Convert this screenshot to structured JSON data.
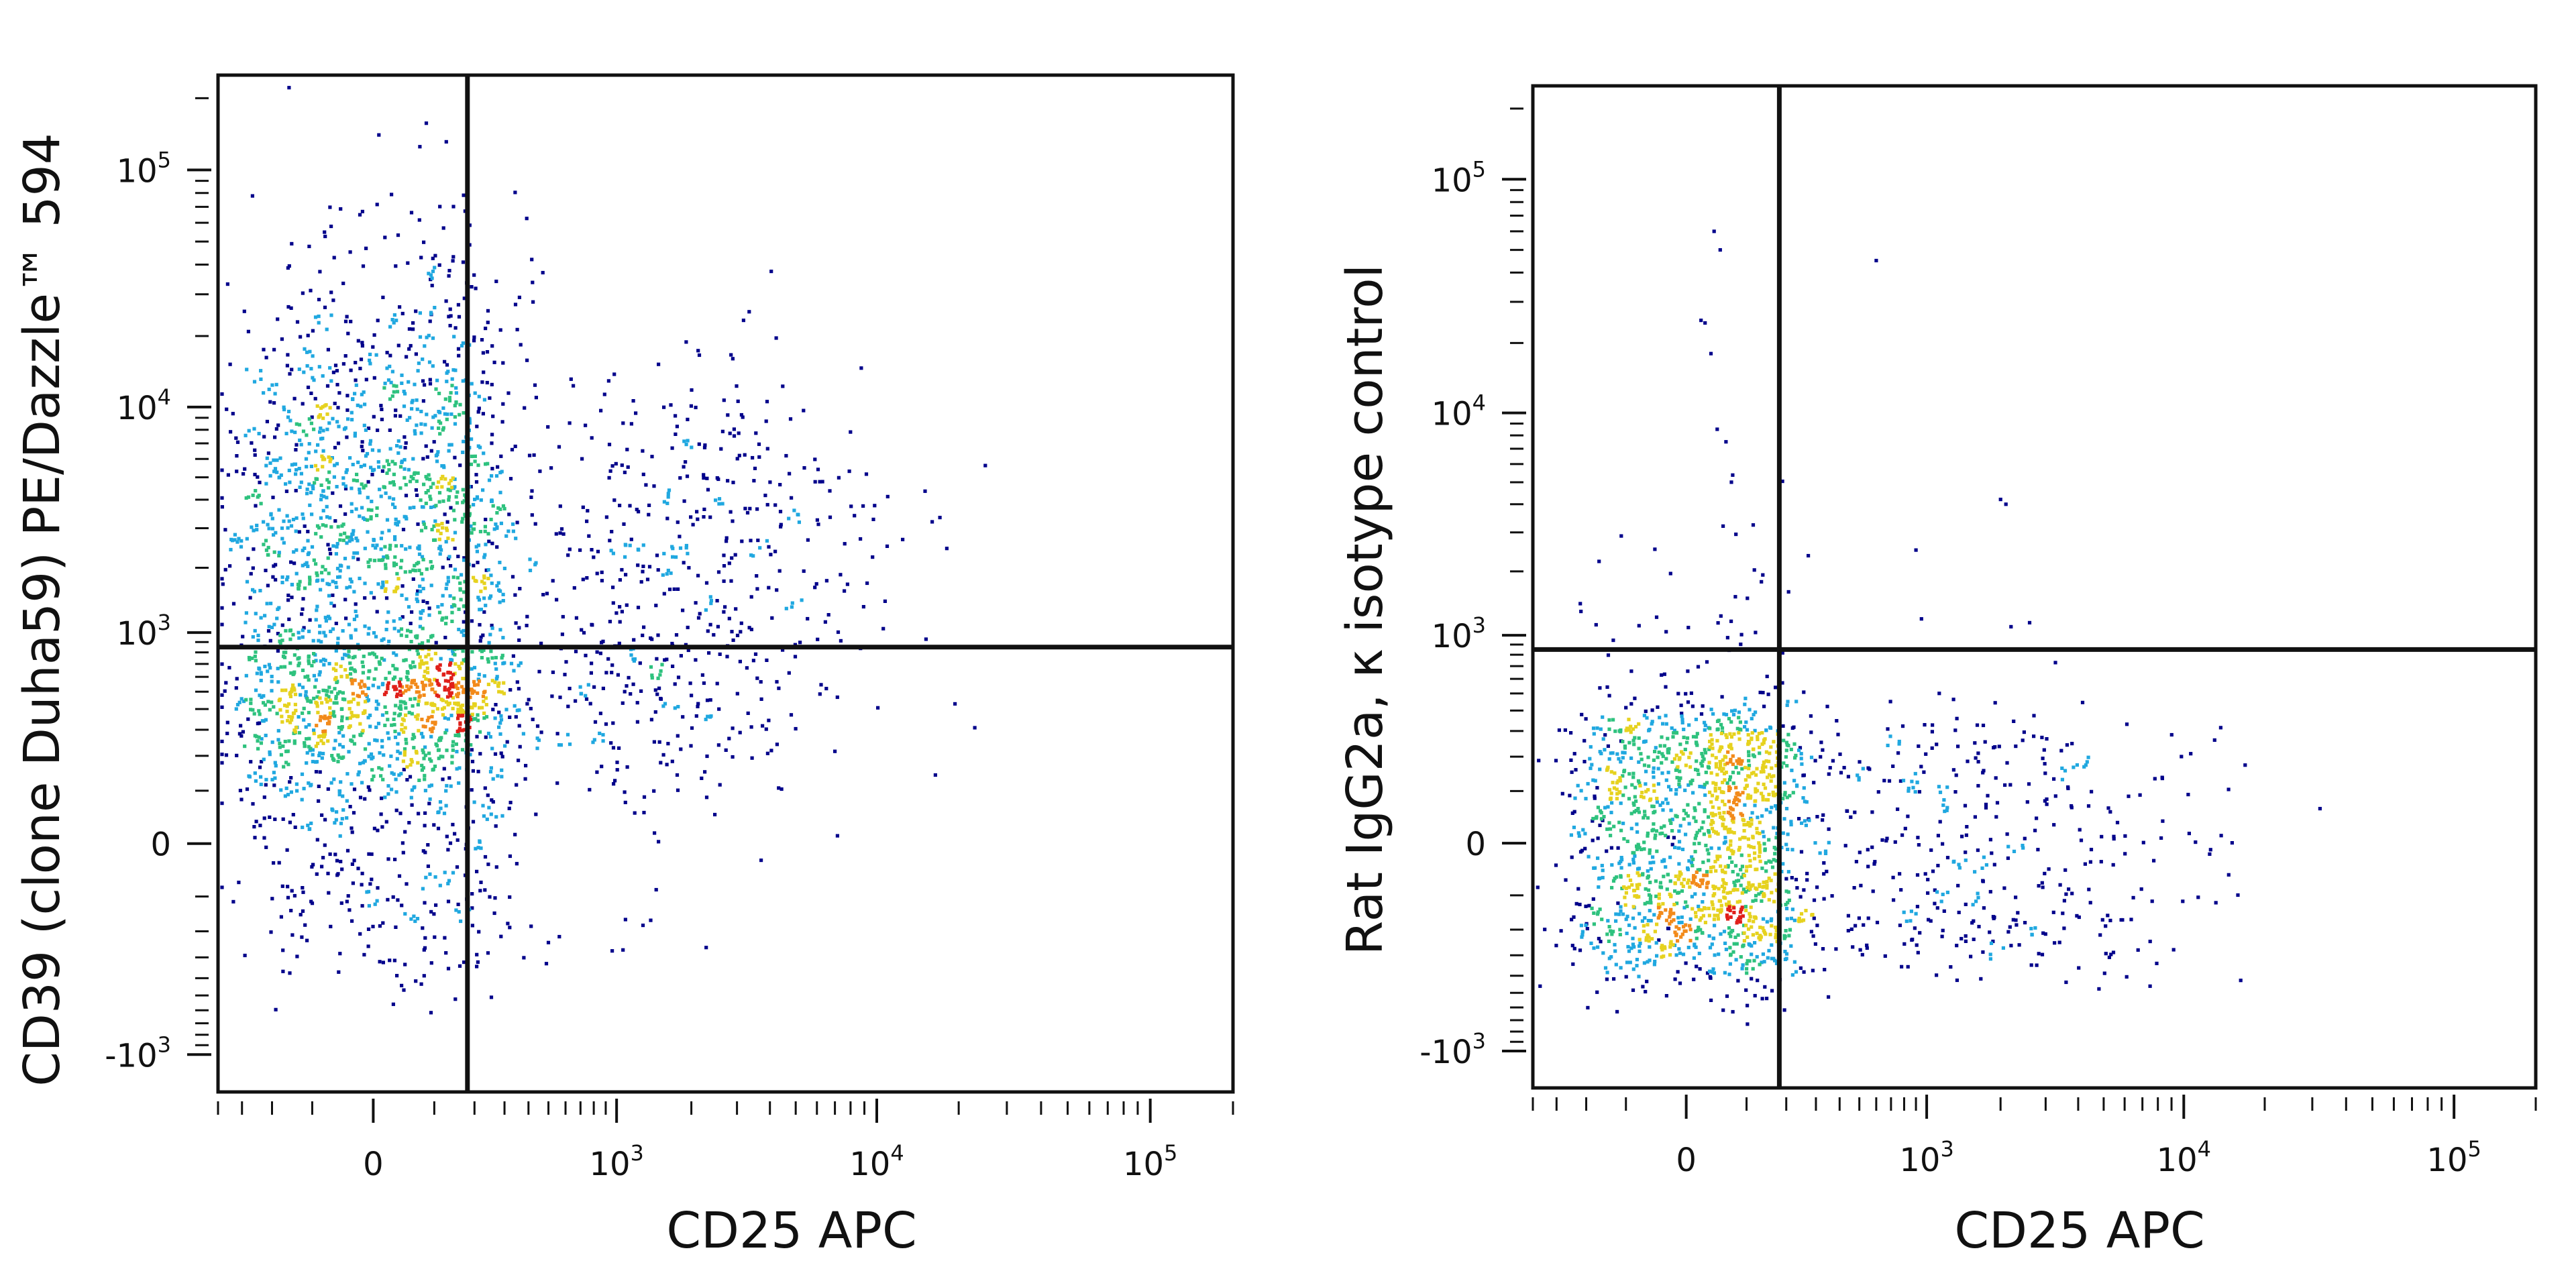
{
  "colors": {
    "axis": "#111111",
    "gate": "#111111",
    "density_scale": [
      "#00008b",
      "#1a3cbf",
      "#20a8e0",
      "#2ec27e",
      "#e6d21f",
      "#f28a1a",
      "#e0201a"
    ]
  },
  "chart_data": [
    {
      "type": "scatter",
      "style": "flow cytometry pseudocolor density dot plot with quadrant gates",
      "title": "",
      "xlabel": "CD25 APC",
      "ylabel": "CD39 (clone Duha59) PE/Dazzle™ 594",
      "x_scale": "biexponential",
      "y_scale": "biexponential",
      "xlim": [
        -400,
        200000
      ],
      "ylim": [
        -1500,
        250000
      ],
      "x_ticks": [
        {
          "value": 0,
          "base": "0",
          "exp": ""
        },
        {
          "value": 1000,
          "base": "10",
          "exp": "3"
        },
        {
          "value": 10000,
          "base": "10",
          "exp": "4"
        },
        {
          "value": 100000,
          "base": "10",
          "exp": "5"
        }
      ],
      "y_ticks": [
        {
          "value": -1000,
          "base": "-10",
          "exp": "3"
        },
        {
          "value": 0,
          "base": "0",
          "exp": ""
        },
        {
          "value": 1000,
          "base": "10",
          "exp": "3"
        },
        {
          "value": 10000,
          "base": "10",
          "exp": "4"
        },
        {
          "value": 100000,
          "base": "10",
          "exp": "5"
        }
      ],
      "gates": {
        "x": 180,
        "y": 850
      },
      "populations": [
        {
          "center": [
            20,
            300
          ],
          "spread": [
            160,
            300
          ],
          "count": 1100,
          "density": "high"
        },
        {
          "center": [
            20,
            3500
          ],
          "spread": [
            160,
            0.55
          ],
          "count": 1500,
          "density": "medium"
        },
        {
          "center": [
            2000,
            2500
          ],
          "spread": [
            0.38,
            0.4
          ],
          "count": 430,
          "density": "low"
        },
        {
          "center": [
            1500,
            350
          ],
          "spread": [
            0.3,
            250
          ],
          "count": 140,
          "density": "low"
        }
      ]
    },
    {
      "type": "scatter",
      "style": "flow cytometry pseudocolor density dot plot with quadrant gates",
      "title": "",
      "xlabel": "CD25 APC",
      "ylabel": "Rat IgG2a, κ isotype control",
      "x_scale": "biexponential",
      "y_scale": "biexponential",
      "xlim": [
        -400,
        200000
      ],
      "ylim": [
        -1500,
        250000
      ],
      "x_ticks": [
        {
          "value": 0,
          "base": "0",
          "exp": ""
        },
        {
          "value": 1000,
          "base": "10",
          "exp": "3"
        },
        {
          "value": 10000,
          "base": "10",
          "exp": "4"
        },
        {
          "value": 100000,
          "base": "10",
          "exp": "5"
        }
      ],
      "y_ticks": [
        {
          "value": -1000,
          "base": "-10",
          "exp": "3"
        },
        {
          "value": 0,
          "base": "0",
          "exp": ""
        },
        {
          "value": 1000,
          "base": "10",
          "exp": "3"
        },
        {
          "value": 10000,
          "base": "10",
          "exp": "4"
        },
        {
          "value": 100000,
          "base": "10",
          "exp": "5"
        }
      ],
      "gates": {
        "x": 180,
        "y": 850
      },
      "populations": [
        {
          "center": [
            20,
            0
          ],
          "spread": [
            120,
            200
          ],
          "count": 1500,
          "density": "high"
        },
        {
          "center": [
            1500,
            0
          ],
          "spread": [
            0.45,
            180
          ],
          "count": 420,
          "density": "low"
        },
        {
          "center": [
            40,
            900
          ],
          "spread": [
            110,
            0.5
          ],
          "count": 60,
          "density": "low"
        }
      ],
      "outliers": [
        [
          40,
          60000
        ],
        [
          50,
          50000
        ],
        [
          20,
          25000
        ],
        [
          35,
          18000
        ],
        [
          45,
          8500
        ],
        [
          60,
          7500
        ],
        [
          70,
          5000
        ],
        [
          600,
          45000
        ],
        [
          900,
          2500
        ],
        [
          2000,
          4200
        ],
        [
          2100,
          4000
        ],
        [
          950,
          1200
        ],
        [
          2200,
          1100
        ],
        [
          2600,
          1150
        ],
        [
          55,
          3200
        ]
      ]
    }
  ]
}
